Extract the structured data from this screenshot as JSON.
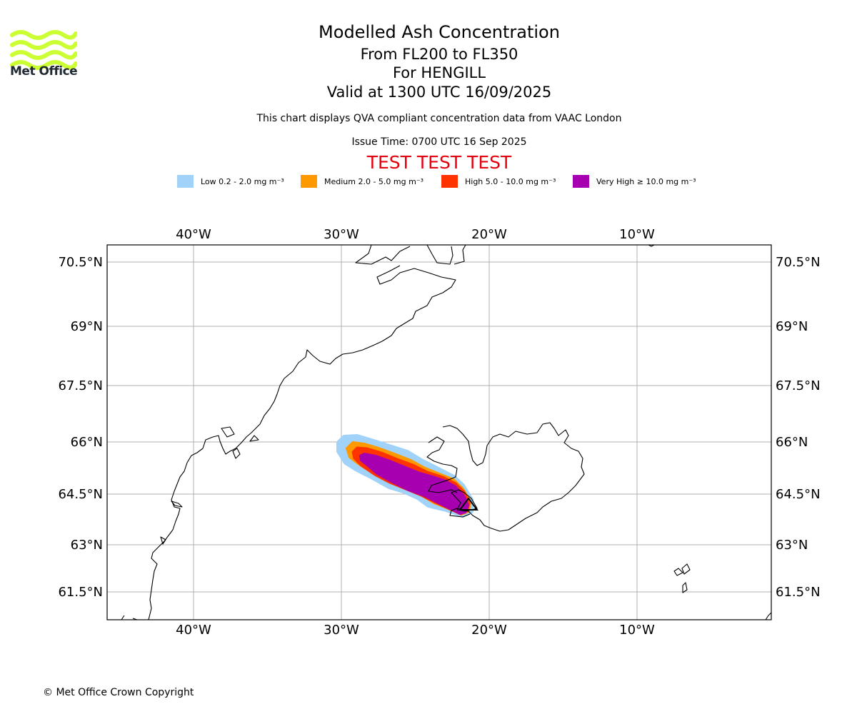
{
  "header": {
    "title": "Modelled Ash Concentration",
    "levels": "From FL200 to FL350",
    "volcano": "For HENGILL",
    "valid": "Valid at 1300 UTC 16/09/2025",
    "description": "This chart displays QVA compliant concentration data from VAAC London",
    "issue_time": "Issue Time: 0700 UTC 16 Sep 2025",
    "test_banner": "TEST TEST TEST"
  },
  "logo": {
    "text": "Met Office",
    "color": "#ccff33"
  },
  "legend": [
    {
      "label": "Low 0.2 - 2.0 mg m⁻³",
      "color": "#a0d2fa"
    },
    {
      "label": "Medium 2.0 - 5.0 mg m⁻³",
      "color": "#ff9900"
    },
    {
      "label": "High 5.0 - 10.0 mg m⁻³",
      "color": "#ff3300"
    },
    {
      "label": "Very High ≥ 10.0 mg m⁻³",
      "color": "#a600b0"
    }
  ],
  "map": {
    "lon_ticks": [
      "40°W",
      "30°W",
      "20°W",
      "10°W"
    ],
    "lat_ticks": [
      "70.5°N",
      "69°N",
      "67.5°N",
      "66°N",
      "64.5°N",
      "63°N",
      "61.5°N"
    ],
    "volcano_marker": "triangle"
  },
  "footer": {
    "copyright": "© Met Office Crown Copyright"
  }
}
